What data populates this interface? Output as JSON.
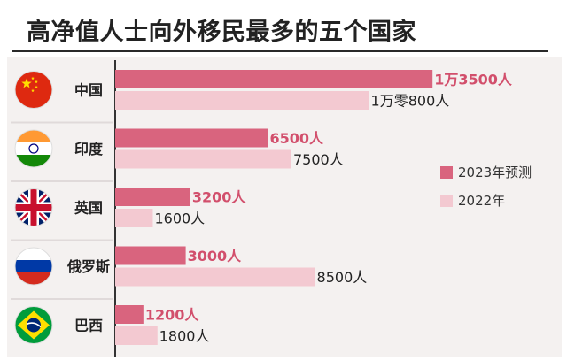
{
  "title": "高净值人士向外移民最多的五个国家",
  "colors": {
    "series_2023": "#d9647e",
    "series_2022": "#f3c9d1",
    "axis": "#333333",
    "divider": "#e0dada"
  },
  "legend": [
    {
      "label": "2023年预测",
      "color": "#d9647e"
    },
    {
      "label": "2022年",
      "color": "#f3c9d1"
    }
  ],
  "chart_data": {
    "type": "bar",
    "orientation": "horizontal",
    "title": "高净值人士向外移民最多的五个国家",
    "categories": [
      "中国",
      "印度",
      "英国",
      "俄罗斯",
      "巴西"
    ],
    "flag_icons": [
      "china-flag-icon",
      "india-flag-icon",
      "uk-flag-icon",
      "russia-flag-icon",
      "brazil-flag-icon"
    ],
    "xlim": [
      0,
      15000
    ],
    "series": [
      {
        "name": "2023年预测",
        "color": "#d9647e",
        "values": [
          13500,
          6500,
          3200,
          3000,
          1200
        ],
        "labels": [
          "1万3500人",
          "6500人",
          "3200人",
          "3000人",
          "1200人"
        ]
      },
      {
        "name": "2022年",
        "color": "#f3c9d1",
        "values": [
          10800,
          7500,
          1600,
          8500,
          1800
        ],
        "labels": [
          "1万零800人",
          "7500人",
          "1600人",
          "8500人",
          "1800人"
        ]
      }
    ]
  }
}
